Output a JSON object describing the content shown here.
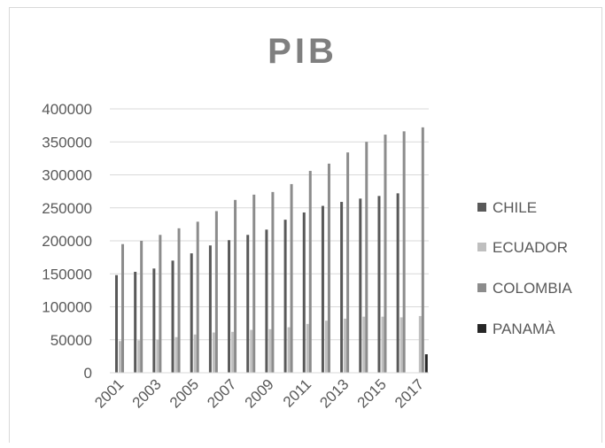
{
  "chart_data": {
    "type": "bar",
    "title": "PIB",
    "xlabel": "",
    "ylabel": "",
    "ylim": [
      0,
      400000
    ],
    "yticks": [
      0,
      50000,
      100000,
      150000,
      200000,
      250000,
      300000,
      350000,
      400000
    ],
    "yticks_labels": [
      "0",
      "50000",
      "100000",
      "150000",
      "200000",
      "250000",
      "300000",
      "350000",
      "400000"
    ],
    "categories": [
      "2001",
      "2002",
      "2003",
      "2004",
      "2005",
      "2006",
      "2007",
      "2008",
      "2009",
      "2010",
      "2011",
      "2012",
      "2013",
      "2014",
      "2015",
      "2016",
      "2017"
    ],
    "xtick_labels": [
      "2001",
      "2003",
      "2005",
      "2007",
      "2009",
      "2011",
      "2013",
      "2015",
      "2017"
    ],
    "grid": true,
    "legend_position": "right",
    "series": [
      {
        "name": "CHILE",
        "color": "#595959",
        "values": [
          148000,
          153000,
          158000,
          170000,
          181000,
          193000,
          201000,
          209000,
          217000,
          232000,
          243000,
          253000,
          259000,
          264000,
          268000,
          272000,
          null
        ]
      },
      {
        "name": "ECUADOR",
        "color": "#bfbfbf",
        "values": [
          48000,
          49000,
          50000,
          54000,
          58000,
          61000,
          62000,
          65000,
          66000,
          69000,
          74000,
          79000,
          82000,
          85000,
          85000,
          84000,
          86000
        ]
      },
      {
        "name": "COLOMBIA",
        "color": "#8c8c8c",
        "values": [
          195000,
          200000,
          209000,
          219000,
          229000,
          245000,
          262000,
          270000,
          274000,
          286000,
          306000,
          317000,
          334000,
          350000,
          361000,
          366000,
          372000
        ]
      },
      {
        "name": "PANAMÀ",
        "color": "#262626",
        "values": [
          null,
          null,
          null,
          null,
          null,
          null,
          null,
          null,
          null,
          null,
          null,
          null,
          null,
          null,
          null,
          null,
          28000
        ]
      }
    ]
  }
}
